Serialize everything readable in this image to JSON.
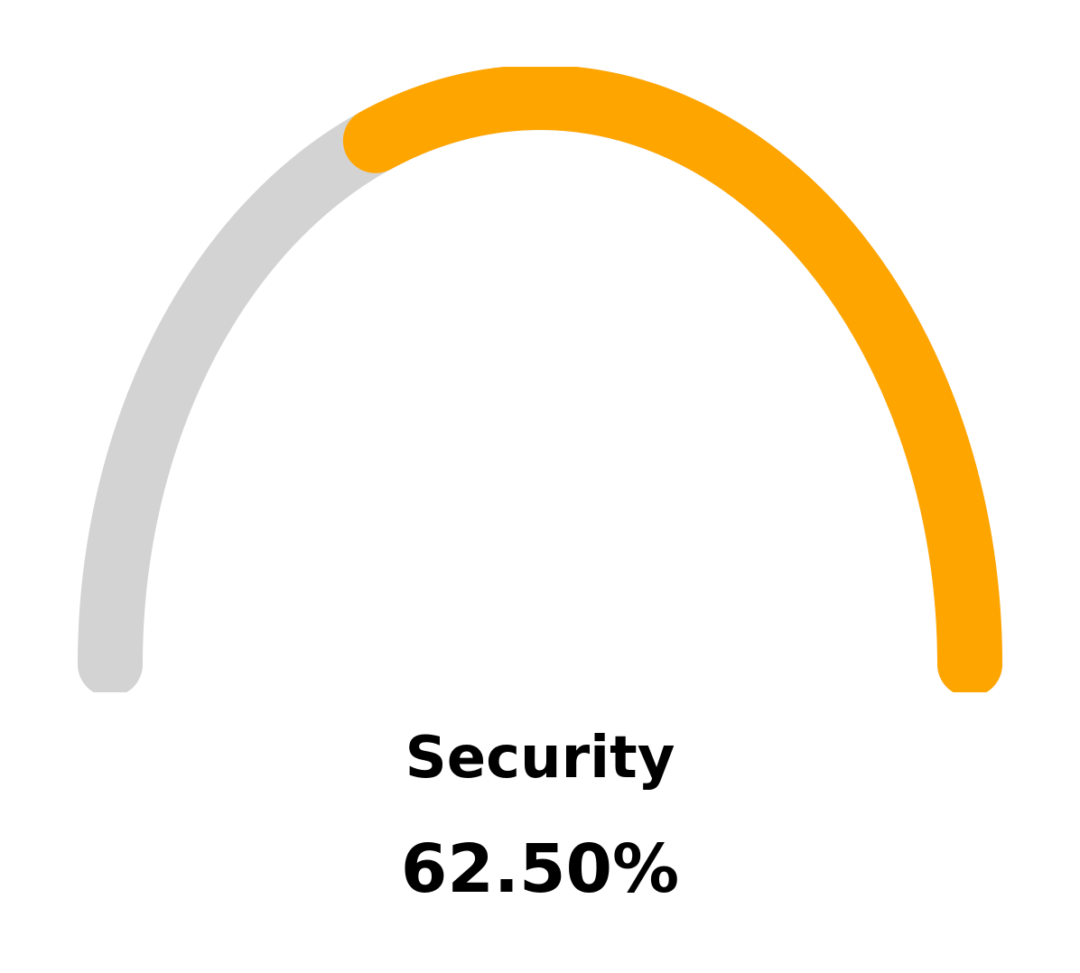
{
  "chart_data": {
    "type": "gauge",
    "title": "Security",
    "value": 62.5,
    "value_label": "62.50%",
    "min": 0,
    "max": 100,
    "colors": {
      "track": "#d3d3d3",
      "fill": "#ffa500"
    }
  }
}
